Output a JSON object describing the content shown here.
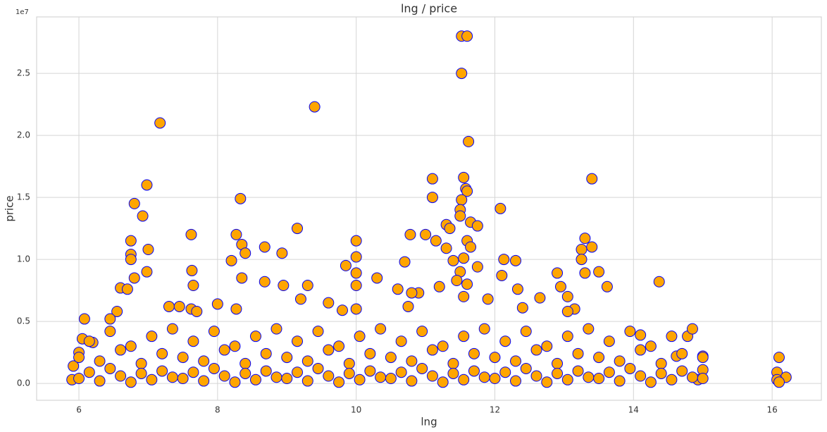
{
  "chart_data": {
    "type": "scatter",
    "title": "lng / price",
    "x_label": "lng",
    "y_label": "price",
    "y_offset_label": "1e7",
    "color": "#ffa500",
    "edge_color": "#0000ff",
    "grid": true,
    "xlim": [
      5.39,
      16.71
    ],
    "ylim": [
      -1360000,
      29550000
    ],
    "xticks": [
      6,
      8,
      10,
      12,
      14,
      16
    ],
    "yticks": [
      {
        "value": 0,
        "label": "0.0"
      },
      {
        "value": 5000000,
        "label": "0.5"
      },
      {
        "value": 10000000,
        "label": "1.0"
      },
      {
        "value": 15000000,
        "label": "1.5"
      },
      {
        "value": 20000000,
        "label": "2.0"
      },
      {
        "value": 25000000,
        "label": "2.5"
      }
    ],
    "x": [
      11.52,
      11.6,
      11.52,
      9.4,
      7.17,
      11.62,
      11.55,
      13.4,
      11.1,
      6.98,
      11.58,
      11.6,
      11.1,
      8.33,
      6.8,
      11.52,
      12.08,
      11.5,
      6.92,
      11.5,
      11.65,
      11.3,
      11.75,
      11.35,
      9.15,
      7.62,
      8.27,
      10.78,
      11,
      13.3,
      6.75,
      10,
      11.15,
      11.6,
      8.35,
      8.68,
      11.65,
      13.4,
      13.25,
      7,
      8.4,
      8.93,
      6.75,
      11.3,
      10,
      11.55,
      6.75,
      8.2,
      12.13,
      12.3,
      13.25,
      11.4,
      10.7,
      9.85,
      11.75,
      7.63,
      6.98,
      12.9,
      10,
      13.3,
      13.5,
      12.1,
      6.8,
      8.35,
      10.3,
      14.37,
      8.68,
      7.65,
      8.95,
      9.3,
      10,
      13.62,
      6.6,
      6.7,
      11.2,
      12.33,
      10.6,
      12.95,
      10.9,
      10.8,
      13.05,
      12.65,
      9.6,
      9.2,
      11.9,
      7.3,
      7.45,
      8,
      7.62,
      8.27,
      10,
      12.4,
      13.15,
      7.7,
      6.55,
      10.75,
      6.08,
      6.45,
      13.05,
      9.8,
      14.78,
      14.1,
      16.1,
      16.07,
      16.2,
      16.07,
      16.1,
      15,
      14.62,
      15,
      14.93,
      5.92,
      5.9,
      6,
      6.05,
      6.2,
      11.5,
      11.45,
      11.6,
      11.55,
      6.0,
      6.15,
      6.3,
      6.45,
      6.6,
      6.75,
      6.9,
      7.05,
      7.2,
      7.35,
      7.5,
      7.65,
      7.8,
      7.95,
      8.1,
      8.25,
      8.4,
      8.55,
      8.7,
      8.85,
      9.0,
      9.15,
      9.3,
      9.45,
      9.6,
      9.75,
      9.9,
      10.05,
      10.2,
      10.35,
      10.5,
      10.65,
      10.8,
      10.95,
      11.1,
      11.25,
      11.4,
      11.55,
      11.7,
      11.85,
      12.0,
      12.15,
      12.3,
      12.45,
      12.6,
      12.75,
      12.9,
      13.05,
      13.2,
      13.35,
      13.5,
      13.65,
      13.8,
      13.95,
      14.1,
      14.25,
      14.4,
      14.55,
      14.7,
      14.85,
      15.0,
      6.0,
      6.15,
      6.3,
      6.45,
      6.6,
      6.75,
      6.9,
      7.05,
      7.2,
      7.35,
      7.5,
      7.65,
      7.8,
      7.95,
      8.1,
      8.25,
      8.4,
      8.55,
      8.7,
      8.85,
      9.0,
      9.15,
      9.3,
      9.45,
      9.6,
      9.75,
      9.9,
      10.05,
      10.2,
      10.35,
      10.5,
      10.65,
      10.8,
      10.95,
      11.1,
      11.25,
      11.4,
      11.55,
      11.7,
      11.85,
      12.0,
      12.15,
      12.3,
      12.45,
      12.6,
      12.75,
      12.9,
      13.05,
      13.2,
      13.35,
      13.5,
      13.65,
      13.8,
      13.95,
      14.1,
      14.25,
      14.4,
      14.55,
      14.7,
      14.85,
      15.0
    ],
    "values": [
      28000000,
      28000000,
      25000000,
      22300000,
      21000000,
      19500000,
      16600000,
      16500000,
      16500000,
      16000000,
      15700000,
      15500000,
      15000000,
      14900000,
      14500000,
      14800000,
      14100000,
      14000000,
      13500000,
      13500000,
      13000000,
      12800000,
      12700000,
      12500000,
      12500000,
      12000000,
      12000000,
      12000000,
      12000000,
      11700000,
      11500000,
      11500000,
      11500000,
      11500000,
      11200000,
      11000000,
      11000000,
      11000000,
      10800000,
      10800000,
      10500000,
      10500000,
      10400000,
      10900000,
      10200000,
      10100000,
      10000000,
      9900000,
      10000000,
      9900000,
      10000000,
      9900000,
      9800000,
      9500000,
      9400000,
      9100000,
      9000000,
      8900000,
      8900000,
      8900000,
      9000000,
      8700000,
      8500000,
      8500000,
      8500000,
      8200000,
      8200000,
      7900000,
      7900000,
      7900000,
      7900000,
      7800000,
      7700000,
      7600000,
      7800000,
      7600000,
      7600000,
      7800000,
      7300000,
      7300000,
      7000000,
      6900000,
      6500000,
      6800000,
      6800000,
      6200000,
      6200000,
      6400000,
      6000000,
      6000000,
      6000000,
      6100000,
      6000000,
      5800000,
      5800000,
      6200000,
      5200000,
      5200000,
      5800000,
      5900000,
      3800000,
      3900000,
      2100000,
      900000,
      500000,
      300000,
      100000,
      2200000,
      2200000,
      1100000,
      300000,
      1400000,
      300000,
      2500000,
      3600000,
      3300000,
      9000000,
      8300000,
      8000000,
      7000000,
      2100000,
      3400000,
      1800000,
      4200000,
      2700000,
      3000000,
      1600000,
      3800000,
      2400000,
      4400000,
      2100000,
      3400000,
      1800000,
      4200000,
      2700000,
      3000000,
      1600000,
      3800000,
      2400000,
      4400000,
      2100000,
      3400000,
      1800000,
      4200000,
      2700000,
      3000000,
      1600000,
      3800000,
      2400000,
      4400000,
      2100000,
      3400000,
      1800000,
      4200000,
      2700000,
      3000000,
      1600000,
      3800000,
      2400000,
      4400000,
      2100000,
      3400000,
      1800000,
      4200000,
      2700000,
      3000000,
      1600000,
      3800000,
      2400000,
      4400000,
      2100000,
      3400000,
      1800000,
      4200000,
      2700000,
      3000000,
      1600000,
      3800000,
      2400000,
      4400000,
      2100000,
      400000,
      900000,
      200000,
      1200000,
      600000,
      100000,
      800000,
      300000,
      1000000,
      500000,
      400000,
      900000,
      200000,
      1200000,
      600000,
      100000,
      800000,
      300000,
      1000000,
      500000,
      400000,
      900000,
      200000,
      1200000,
      600000,
      100000,
      800000,
      300000,
      1000000,
      500000,
      400000,
      900000,
      200000,
      1200000,
      600000,
      100000,
      800000,
      300000,
      1000000,
      500000,
      400000,
      900000,
      200000,
      1200000,
      600000,
      100000,
      800000,
      300000,
      1000000,
      500000,
      400000,
      900000,
      200000,
      1200000,
      600000,
      100000,
      800000,
      300000,
      1000000,
      500000,
      400000
    ]
  }
}
